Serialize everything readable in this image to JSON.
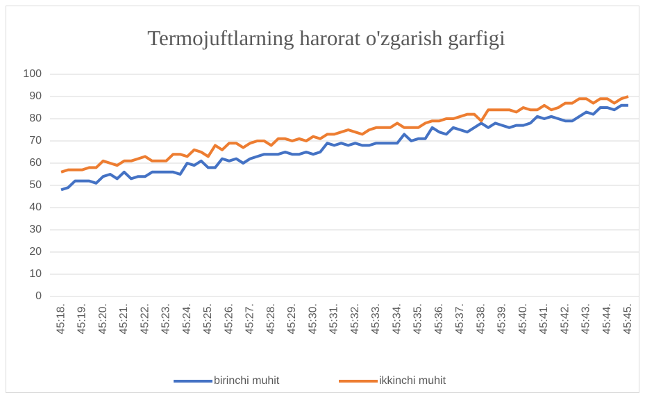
{
  "chart_data": {
    "type": "line",
    "title": "Termojuftlarning harorat o'zgarish garfigi",
    "categories": [
      "45:18.",
      null,
      null,
      "45:19.",
      null,
      null,
      "45:20.",
      null,
      null,
      "45:21.",
      null,
      null,
      "45:22.",
      null,
      null,
      "45:23.",
      null,
      null,
      "45:24.",
      null,
      null,
      "45:25.",
      null,
      null,
      "45:26.",
      null,
      null,
      "45:27.",
      null,
      null,
      "45:28.",
      null,
      null,
      "45:29.",
      null,
      null,
      "45:30.",
      null,
      null,
      "45:31.",
      null,
      null,
      "45:32.",
      null,
      null,
      "45:33.",
      null,
      null,
      "45:34.",
      null,
      null,
      "45:35.",
      null,
      null,
      "45:36.",
      null,
      null,
      "45:37.",
      null,
      null,
      "45:38.",
      null,
      null,
      "45:39.",
      null,
      null,
      "45:40.",
      null,
      null,
      "45:41.",
      null,
      null,
      "45:42.",
      null,
      null,
      "45:43.",
      null,
      null,
      "45:44.",
      null,
      null,
      "45:45."
    ],
    "series": [
      {
        "name": "birinchi muhit",
        "color": "#4472c4",
        "values": [
          48,
          49,
          52,
          52,
          52,
          51,
          54,
          55,
          53,
          56,
          53,
          54,
          54,
          56,
          56,
          56,
          56,
          55,
          60,
          59,
          61,
          58,
          58,
          62,
          61,
          62,
          60,
          62,
          63,
          64,
          64,
          64,
          65,
          64,
          64,
          65,
          64,
          65,
          69,
          68,
          69,
          68,
          69,
          68,
          68,
          69,
          69,
          69,
          69,
          73,
          70,
          71,
          71,
          76,
          74,
          73,
          76,
          75,
          74,
          76,
          78,
          76,
          78,
          77,
          76,
          77,
          77,
          78,
          81,
          80,
          81,
          80,
          79,
          79,
          81,
          83,
          82,
          85,
          85,
          84,
          86,
          86
        ]
      },
      {
        "name": "ikkinchi muhit",
        "color": "#ed7d31",
        "values": [
          56,
          57,
          57,
          57,
          58,
          58,
          61,
          60,
          59,
          61,
          61,
          62,
          63,
          61,
          61,
          61,
          64,
          64,
          63,
          66,
          65,
          63,
          68,
          66,
          69,
          69,
          67,
          69,
          70,
          70,
          68,
          71,
          71,
          70,
          71,
          70,
          72,
          71,
          73,
          73,
          74,
          75,
          74,
          73,
          75,
          76,
          76,
          76,
          78,
          76,
          76,
          76,
          78,
          79,
          79,
          80,
          80,
          81,
          82,
          82,
          79,
          84,
          84,
          84,
          84,
          83,
          85,
          84,
          84,
          86,
          84,
          85,
          87,
          87,
          89,
          89,
          87,
          89,
          89,
          87,
          89,
          90
        ]
      }
    ],
    "ylim": [
      0,
      100
    ],
    "yticks": [
      0,
      10,
      20,
      30,
      40,
      50,
      60,
      70,
      80,
      90,
      100
    ],
    "grid": true,
    "legend": "bottom"
  }
}
